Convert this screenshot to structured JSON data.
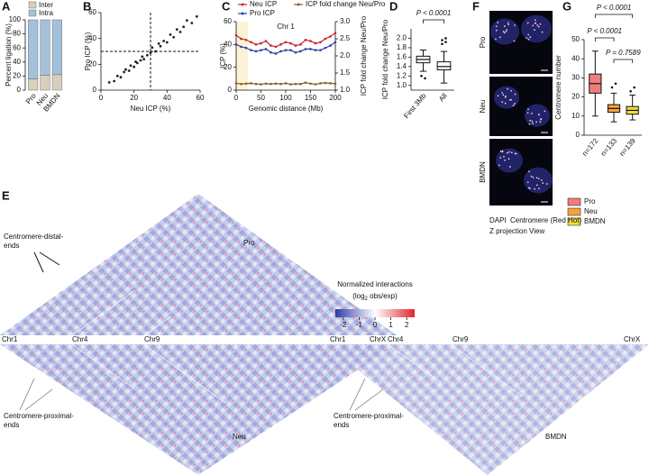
{
  "panel_labels": {
    "A": "A",
    "B": "B",
    "C": "C",
    "D": "D",
    "E": "E",
    "F": "F",
    "G": "G"
  },
  "chart_data": [
    {
      "type": "stacked-bar",
      "ylabel": "Percent ligation (%)",
      "categories": [
        "Pro",
        "Neu",
        "BMDN"
      ],
      "series": [
        {
          "name": "Inter",
          "color": "#d8d0bd",
          "values": [
            16,
            21,
            22
          ]
        },
        {
          "name": "Intra",
          "color": "#a4c1dc",
          "values": [
            84,
            79,
            78
          ]
        }
      ],
      "ylim": [
        0,
        100
      ],
      "yticks": [
        0,
        20,
        40,
        60,
        80,
        100
      ]
    },
    {
      "type": "scatter",
      "xlabel": "Neu ICP (%)",
      "ylabel": "Pro ICP (%)",
      "color": "#222222",
      "x": [
        5,
        8,
        10,
        12,
        14,
        15,
        17,
        18,
        20,
        21,
        22,
        24,
        25,
        26,
        28,
        30,
        31,
        33,
        35,
        36,
        38,
        40,
        42,
        44,
        46,
        48,
        50,
        52,
        55,
        58
      ],
      "values": [
        6,
        7,
        11,
        10,
        14,
        16,
        15,
        19,
        18,
        22,
        21,
        23,
        26,
        24,
        27,
        29,
        33,
        30,
        36,
        34,
        38,
        37,
        43,
        41,
        47,
        45,
        49,
        54,
        52,
        57
      ],
      "xlim": [
        0,
        60
      ],
      "ylim": [
        0,
        60
      ],
      "xticks": [
        0,
        20,
        40,
        60
      ],
      "yticks": [
        0,
        20,
        40,
        60
      ],
      "reference_x": 30,
      "reference_y": 30
    },
    {
      "type": "line",
      "annotation": "Chr 1",
      "xlabel": "Genomic distance (Mb)",
      "ylabel": "ICP (%)",
      "y2label": "ICP fold change Neu/Pro",
      "x": [
        0,
        10,
        20,
        30,
        40,
        50,
        60,
        70,
        80,
        90,
        100,
        110,
        120,
        130,
        140,
        150,
        160,
        170,
        180,
        190,
        200
      ],
      "series": [
        {
          "name": "Neu ICP",
          "color": "#c8262c",
          "values": [
            48,
            45,
            44,
            42,
            40,
            41,
            43,
            39,
            38,
            40,
            42,
            41,
            39,
            40,
            44,
            43,
            41,
            42,
            45,
            47,
            50
          ]
        },
        {
          "name": "Pro ICP",
          "color": "#2f3f9e",
          "values": [
            40,
            38,
            37,
            35,
            34,
            35,
            36,
            33,
            32,
            34,
            35,
            35,
            33,
            34,
            36,
            36,
            35,
            35,
            37,
            39,
            42
          ]
        },
        {
          "name": "ICP fold change Neu/Pro",
          "color": "#8a5a2b",
          "axis": "y2",
          "values": [
            1.2,
            1.18,
            1.19,
            1.2,
            1.18,
            1.17,
            1.19,
            1.18,
            1.19,
            1.18,
            1.2,
            1.17,
            1.18,
            1.18,
            1.22,
            1.19,
            1.17,
            1.2,
            1.21,
            1.2,
            1.19
          ]
        }
      ],
      "xlim": [
        0,
        200
      ],
      "ylim": [
        0,
        60
      ],
      "y2lim": [
        1.0,
        3.0
      ],
      "xticks": [
        0,
        50,
        100,
        150,
        200
      ],
      "yticks": [
        0,
        20,
        40,
        60
      ],
      "y2ticks": [
        {
          "value": 1.0,
          "label": "1.0"
        },
        {
          "value": 1.5,
          "label": "1.5"
        },
        {
          "value": 2.0,
          "label": "2.0"
        },
        {
          "value": 2.5,
          "label": "2.5"
        },
        {
          "value": 3.0,
          "label": "3.0"
        }
      ]
    },
    {
      "type": "box",
      "ylabel": "ICP fold change Neu/Pro",
      "categories": [
        "First 3Mb",
        "All"
      ],
      "colors": [
        "#ffffff",
        "#ffffff"
      ],
      "boxes": [
        {
          "min": 1.3,
          "q1": 1.48,
          "median": 1.55,
          "q3": 1.62,
          "max": 1.75,
          "outliers": [
            1.2,
            1.15
          ]
        },
        {
          "min": 1.05,
          "q1": 1.33,
          "median": 1.4,
          "q3": 1.5,
          "max": 1.72,
          "outliers": [
            1.88,
            1.92,
            1.96,
            2.0
          ]
        }
      ],
      "ylim": [
        0.9,
        2.2
      ],
      "yticks": [
        {
          "value": 1.0,
          "label": "1.0"
        },
        {
          "value": 1.2,
          "label": "1.2"
        },
        {
          "value": 1.4,
          "label": "1.4"
        },
        {
          "value": 1.6,
          "label": "1.6"
        },
        {
          "value": 1.8,
          "label": "1.8"
        },
        {
          "value": 2.0,
          "label": "2.0"
        }
      ],
      "annotations": [
        "P < 0.0001"
      ]
    },
    {
      "type": "box",
      "ylabel": "Centromere number",
      "categories": [
        "Pro",
        "Neu",
        "BMDN"
      ],
      "colors": [
        "#f07d7d",
        "#f5a23d",
        "#f0e03c"
      ],
      "n_labels": [
        "n=172",
        "n=133",
        "n=139"
      ],
      "boxes": [
        {
          "min": 10,
          "q1": 22,
          "median": 27,
          "q3": 32,
          "max": 44,
          "outliers": []
        },
        {
          "min": 7,
          "q1": 12,
          "median": 14,
          "q3": 16,
          "max": 22,
          "outliers": [
            25,
            27
          ]
        },
        {
          "min": 8,
          "q1": 11,
          "median": 13,
          "q3": 15,
          "max": 21,
          "outliers": [
            23,
            25
          ]
        }
      ],
      "ylim": [
        0,
        50
      ],
      "yticks": [
        0,
        10,
        20,
        30,
        40,
        50
      ],
      "annotations": [
        "P < 0.0001",
        "P < 0.0001",
        "P = 0.7589"
      ]
    }
  ],
  "heatmap": {
    "maps": [
      "Pro",
      "Neu",
      "BMDN"
    ],
    "chromosomes_left": [
      "Chr1",
      "Chr4",
      "Chr9",
      "ChrX"
    ],
    "chromosomes_right": [
      "Chr1",
      "Chr4",
      "Chr9",
      "ChrX"
    ],
    "distal": [
      "Centromere-distal-",
      "ends"
    ],
    "proximal_left": [
      "Centromere-proximal-",
      "ends"
    ],
    "proximal_right": [
      "Centromere-proximal-",
      "ends"
    ],
    "colorbar": {
      "title": "Normalized interactions",
      "sub_pre": "(log",
      "sub_index": "2",
      "sub_post": " obs/exp)",
      "lim": [
        -2.5,
        2.5
      ],
      "ticks": [
        -2,
        -1,
        0,
        1,
        2
      ]
    }
  },
  "microscopy": {
    "rows": [
      "Pro",
      "Neu",
      "BMDN"
    ],
    "dapi": "DAPI",
    "centromere": "Centromere (Red Hot)",
    "view": "Z projection View"
  }
}
